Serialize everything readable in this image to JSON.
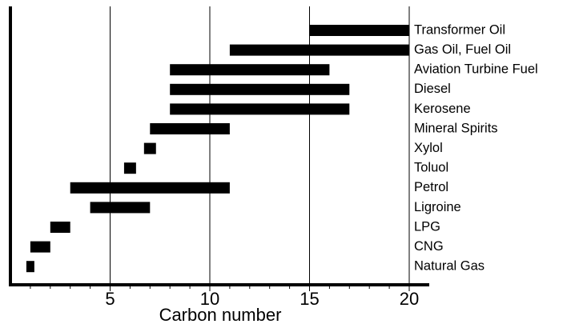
{
  "chart_data": {
    "type": "bar",
    "orientation": "horizontal-range",
    "title": "",
    "xlabel": "Carbon number",
    "ylabel": "",
    "xlim": [
      0,
      20
    ],
    "x_ticks": [
      5,
      10,
      15,
      20
    ],
    "grid": true,
    "categories": [
      "Transformer Oil",
      "Gas Oil, Fuel Oil",
      "Aviation Turbine Fuel",
      "Diesel",
      "Kerosene",
      "Mineral Spirits",
      "Xylol",
      "Toluol",
      "Petrol",
      "Ligroine",
      "LPG",
      "CNG",
      "Natural Gas"
    ],
    "ranges": [
      [
        15,
        20
      ],
      [
        11,
        20
      ],
      [
        8,
        16
      ],
      [
        8,
        17
      ],
      [
        8,
        17
      ],
      [
        7,
        11
      ],
      [
        6.7,
        7.3
      ],
      [
        5.7,
        6.3
      ],
      [
        3,
        11
      ],
      [
        4,
        7
      ],
      [
        2,
        3
      ],
      [
        1,
        2
      ],
      [
        0.8,
        1.2
      ]
    ],
    "bar_color": "#000000"
  }
}
